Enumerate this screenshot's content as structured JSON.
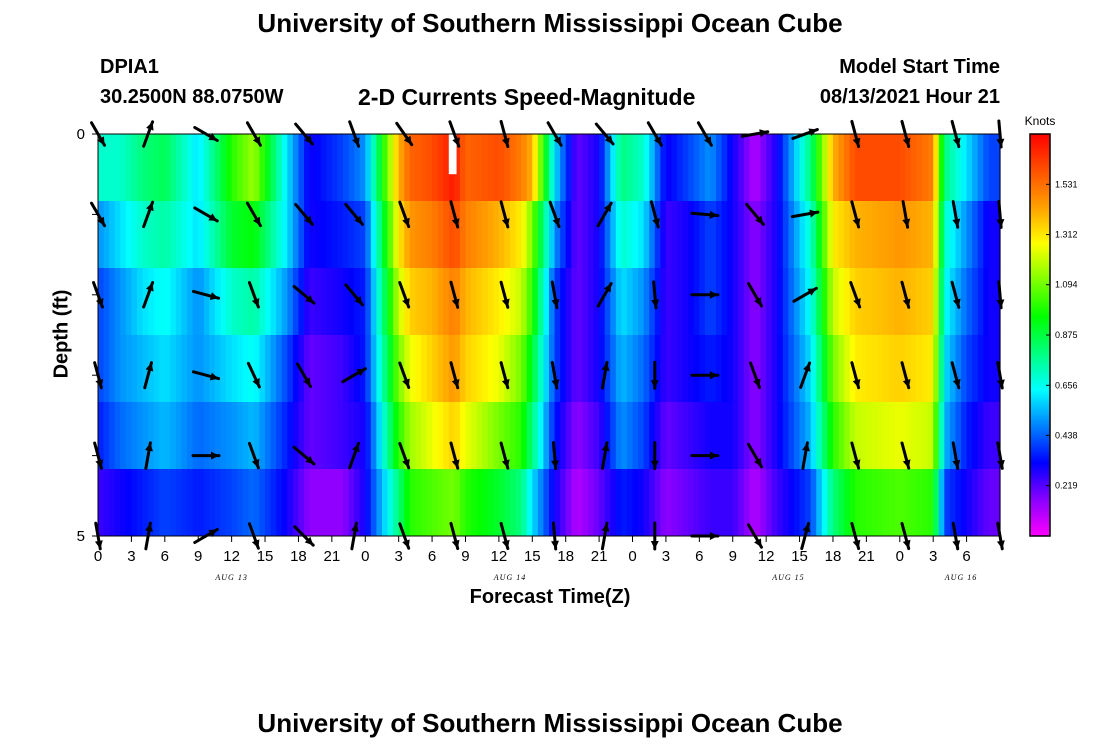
{
  "header": {
    "title": "University of Southern Mississippi Ocean Cube",
    "station": "DPIA1",
    "coordinates": "30.2500N  88.0750W",
    "subtitle": "2-D Currents Speed-Magnitude",
    "model_start_label": "Model Start Time",
    "model_start_value": "08/13/2021 Hour 21"
  },
  "footer": {
    "title": "University of Southern Mississippi Ocean Cube"
  },
  "colors": {
    "colormap": [
      "#ff00ff",
      "#8800ff",
      "#0000ff",
      "#0080ff",
      "#00ffff",
      "#00ff80",
      "#00ff00",
      "#80ff00",
      "#ffff00",
      "#ffa000",
      "#ff5000",
      "#ff0000"
    ],
    "arrow": "#000000",
    "gap": "#ffffff"
  },
  "chart_data": {
    "type": "heatmap",
    "title": "2-D Currents Speed-Magnitude",
    "xlabel": "Forecast Time(Z)",
    "ylabel": "Depth (ft)",
    "units": "Knots",
    "xlim": [
      0,
      81
    ],
    "ylim": [
      0,
      5
    ],
    "x_ticks": [
      0,
      3,
      6,
      9,
      12,
      15,
      18,
      21,
      24,
      27,
      30,
      33,
      36,
      39,
      42,
      45,
      48,
      51,
      54,
      57,
      60,
      63,
      66,
      69,
      72,
      75,
      78,
      81
    ],
    "x_tick_labels": [
      "0",
      "3",
      "6",
      "9",
      "12",
      "15",
      "18",
      "21",
      "0",
      "3",
      "6",
      "9",
      "12",
      "15",
      "18",
      "21",
      "0",
      "3",
      "6",
      "9",
      "12",
      "15",
      "18",
      "21",
      "0",
      "3",
      "6"
    ],
    "y_ticks": [
      0,
      1,
      2,
      3,
      4,
      5
    ],
    "y_tick_labels": [
      "0",
      "",
      "",
      "",
      "",
      "5"
    ],
    "date_labels": [
      {
        "label": "AUG 13",
        "x": 12
      },
      {
        "label": "AUG 14",
        "x": 37
      },
      {
        "label": "AUG 15",
        "x": 62
      },
      {
        "label": "AUG 16",
        "x": 77.5
      }
    ],
    "colorbar": {
      "min": 0,
      "max": 1.75,
      "ticks": [
        1.531,
        1.312,
        1.094,
        0.875,
        0.656,
        0.438,
        0.219
      ]
    },
    "depth_layers": [
      0.5,
      1.5,
      2.5,
      3.5,
      4.5
    ],
    "keypoints_x": [
      0,
      2,
      4,
      6,
      9,
      12,
      14,
      17,
      19,
      22,
      24,
      27,
      28,
      30,
      32,
      33,
      36,
      38,
      39,
      41,
      43,
      45,
      47,
      49,
      51,
      53,
      55,
      57,
      59,
      61,
      64,
      66,
      68,
      72,
      75,
      76,
      78,
      80,
      81
    ],
    "keypoints_speed": [
      [
        0.7,
        0.7,
        0.8,
        0.85,
        0.6,
        1.0,
        1.15,
        0.6,
        0.3,
        0.4,
        0.5,
        1.4,
        1.55,
        1.6,
        1.7,
        1.55,
        1.6,
        1.5,
        1.4,
        0.6,
        0.2,
        0.3,
        0.8,
        0.7,
        0.3,
        0.4,
        0.5,
        0.3,
        0.1,
        0.3,
        0.8,
        1.4,
        1.6,
        1.6,
        1.5,
        0.8,
        0.6,
        0.4,
        0.4
      ],
      [
        0.5,
        0.6,
        0.7,
        0.75,
        0.6,
        0.9,
        0.95,
        0.6,
        0.3,
        0.35,
        0.4,
        1.3,
        1.45,
        1.5,
        1.6,
        1.5,
        1.4,
        1.3,
        1.1,
        0.5,
        0.2,
        0.3,
        0.7,
        0.6,
        0.25,
        0.3,
        0.4,
        0.3,
        0.15,
        0.3,
        0.7,
        1.3,
        1.4,
        1.45,
        1.4,
        0.7,
        0.5,
        0.3,
        0.3
      ],
      [
        0.4,
        0.5,
        0.6,
        0.65,
        0.5,
        0.7,
        0.75,
        0.5,
        0.25,
        0.3,
        0.35,
        1.2,
        1.35,
        1.4,
        1.5,
        1.4,
        1.3,
        1.2,
        1.0,
        0.4,
        0.2,
        0.3,
        0.6,
        0.5,
        0.25,
        0.3,
        0.4,
        0.3,
        0.15,
        0.3,
        0.65,
        1.2,
        1.35,
        1.4,
        1.35,
        0.65,
        0.45,
        0.3,
        0.3
      ],
      [
        0.4,
        0.5,
        0.55,
        0.6,
        0.5,
        0.6,
        0.65,
        0.4,
        0.2,
        0.25,
        0.35,
        1.1,
        1.25,
        1.35,
        1.45,
        1.35,
        1.25,
        1.1,
        0.9,
        0.4,
        0.2,
        0.3,
        0.55,
        0.45,
        0.25,
        0.3,
        0.35,
        0.3,
        0.15,
        0.3,
        0.6,
        1.1,
        1.3,
        1.35,
        1.3,
        0.6,
        0.4,
        0.3,
        0.3
      ],
      [
        0.35,
        0.45,
        0.5,
        0.55,
        0.45,
        0.5,
        0.55,
        0.35,
        0.2,
        0.25,
        0.3,
        1.0,
        1.15,
        1.25,
        1.35,
        1.25,
        1.1,
        1.0,
        0.8,
        0.35,
        0.15,
        0.25,
        0.5,
        0.4,
        0.2,
        0.25,
        0.3,
        0.3,
        0.15,
        0.3,
        0.55,
        1.0,
        1.2,
        1.25,
        1.2,
        0.55,
        0.35,
        0.25,
        0.25
      ],
      [
        0.25,
        0.3,
        0.35,
        0.4,
        0.35,
        0.4,
        0.45,
        0.3,
        0.15,
        0.15,
        0.3,
        0.8,
        1.0,
        1.05,
        1.1,
        1.0,
        0.9,
        0.8,
        0.6,
        0.3,
        0.1,
        0.2,
        0.35,
        0.3,
        0.15,
        0.2,
        0.25,
        0.25,
        0.1,
        0.25,
        0.4,
        0.8,
        1.0,
        1.05,
        1.0,
        0.4,
        0.3,
        0.2,
        0.2
      ]
    ],
    "missing": [
      {
        "x_start": 31.5,
        "x_end": 32.2,
        "depth_start": 0,
        "depth_end": 0.5
      }
    ],
    "arrow_times": [
      0,
      4.5,
      9.7,
      14,
      18.5,
      23,
      27.5,
      32,
      36.5,
      41,
      45.5,
      50,
      54.5,
      59,
      63.5,
      68,
      72.5,
      77,
      81
    ],
    "arrow_directions_deg": [
      [
        150,
        20,
        120,
        150,
        140,
        160,
        145,
        160,
        165,
        150,
        140,
        150,
        150,
        80,
        70,
        165,
        165,
        165,
        175
      ],
      [
        150,
        20,
        120,
        150,
        140,
        140,
        160,
        165,
        165,
        160,
        30,
        165,
        95,
        140,
        80,
        165,
        170,
        170,
        175
      ],
      [
        160,
        20,
        105,
        160,
        130,
        140,
        160,
        165,
        165,
        170,
        30,
        175,
        90,
        150,
        60,
        160,
        165,
        165,
        175
      ],
      [
        165,
        15,
        105,
        155,
        150,
        60,
        160,
        165,
        165,
        170,
        10,
        180,
        90,
        160,
        20,
        165,
        165,
        165,
        170
      ],
      [
        165,
        10,
        90,
        160,
        130,
        20,
        160,
        165,
        165,
        175,
        10,
        180,
        90,
        150,
        10,
        165,
        165,
        170,
        170
      ],
      [
        170,
        10,
        60,
        160,
        135,
        10,
        160,
        165,
        165,
        175,
        10,
        180,
        90,
        150,
        15,
        165,
        165,
        170,
        170
      ]
    ]
  }
}
